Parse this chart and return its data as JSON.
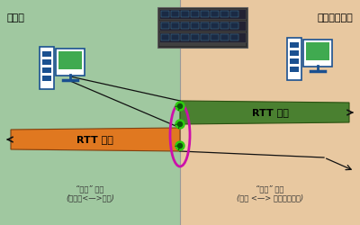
{
  "bg_left_color": "#a0c8a0",
  "bg_right_color": "#e8c8a0",
  "label_workgroup": "工作组",
  "label_connected": "连接的工作组",
  "label_inbound_net": "“入站” 网络\n(工作组<—>设备)",
  "label_outbound_net": "“出站” 网络\n(设备 <—> 连接的工作组)",
  "label_rtt_in": "RTT 入站",
  "label_rtt_out": "RTT 出站",
  "rtt_in_color": "#e07820",
  "rtt_out_color": "#4a8030",
  "arrow_color": "#111111",
  "ellipse_color": "#cc10aa",
  "dot_color": "#30cc10",
  "title_fontsize": 8,
  "body_fontsize": 8,
  "small_fontsize": 6
}
